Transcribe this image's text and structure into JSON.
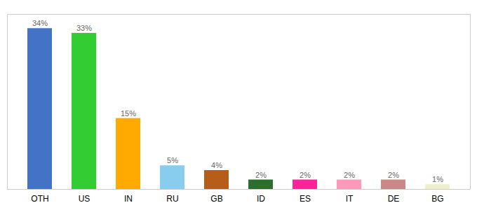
{
  "chart_data": {
    "type": "bar",
    "categories": [
      "OTH",
      "US",
      "IN",
      "RU",
      "GB",
      "ID",
      "ES",
      "IT",
      "DE",
      "BG"
    ],
    "values": [
      34,
      33,
      15,
      5,
      4,
      2,
      2,
      2,
      2,
      1
    ],
    "value_labels": [
      "34%",
      "33%",
      "15%",
      "5%",
      "4%",
      "2%",
      "2%",
      "2%",
      "2%",
      "1%"
    ],
    "colors": [
      "#4472c4",
      "#33cc33",
      "#ffaa00",
      "#88ccee",
      "#b85c1a",
      "#2d6e2d",
      "#ff2299",
      "#ff99bb",
      "#cc8888",
      "#eeeecc"
    ],
    "ylim": [
      0,
      37
    ],
    "data_labels": true,
    "tick_labels": "x",
    "grid": false
  }
}
